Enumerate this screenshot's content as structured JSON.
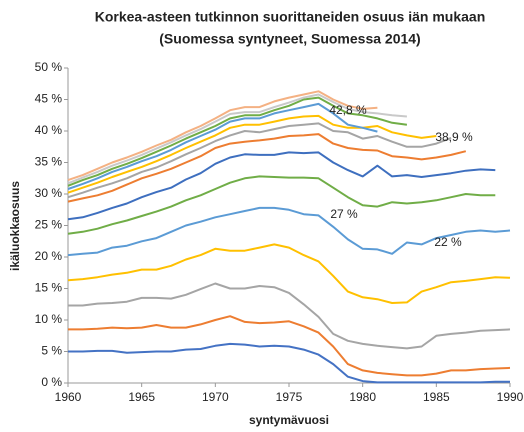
{
  "chart_data": {
    "type": "line",
    "title": "Korkea-asteen tutkinnon suorittaneiden osuus iän mukaan",
    "subtitle": "(Suomessa syntyneet, Suomessa 2014)",
    "xlabel": "syntymävuosi",
    "ylabel": "ikäluokkaosuus",
    "x": [
      1960,
      1961,
      1962,
      1963,
      1964,
      1965,
      1966,
      1967,
      1968,
      1969,
      1970,
      1971,
      1972,
      1973,
      1974,
      1975,
      1976,
      1977,
      1978,
      1979,
      1980,
      1981,
      1982,
      1983,
      1984,
      1985,
      1986,
      1987,
      1988,
      1989,
      1990
    ],
    "xlim": [
      1960,
      1990
    ],
    "xticks": [
      1960,
      1965,
      1970,
      1975,
      1980,
      1985,
      1990
    ],
    "ylim": [
      0,
      50
    ],
    "yticks": [
      {
        "value": 0,
        "label": "0 %"
      },
      {
        "value": 5,
        "label": "5 %"
      },
      {
        "value": 10,
        "label": "10 %"
      },
      {
        "value": 15,
        "label": "15 %"
      },
      {
        "value": 20,
        "label": "20 %"
      },
      {
        "value": 25,
        "label": "25 %"
      },
      {
        "value": 30,
        "label": "30 %"
      },
      {
        "value": 35,
        "label": "35 %"
      },
      {
        "value": 40,
        "label": "40 %"
      },
      {
        "value": 45,
        "label": "45 %"
      },
      {
        "value": 50,
        "label": "50 %"
      }
    ],
    "grid": false,
    "annotations": [
      "42,8 %",
      "38,9 %",
      "27 %",
      "22 %"
    ],
    "series": [
      {
        "color": "#4472c4",
        "values": [
          5,
          5,
          5.1,
          5.1,
          4.8,
          4.9,
          5,
          5,
          5.3,
          5.4,
          5.9,
          6.2,
          6.1,
          5.8,
          5.9,
          5.8,
          5.3,
          4.5,
          3,
          1,
          0.3,
          0.1,
          0.1,
          0.1,
          0.1,
          0.1,
          0.1,
          0.1,
          0.1,
          0.2,
          0.2
        ]
      },
      {
        "color": "#ed7d31",
        "values": [
          8.5,
          8.5,
          8.6,
          8.8,
          8.7,
          8.8,
          9.2,
          8.8,
          8.8,
          9.3,
          10,
          10.6,
          9.7,
          9.5,
          9.6,
          9.8,
          9,
          8,
          5.8,
          3,
          2,
          1.6,
          1.4,
          1.2,
          1.2,
          1.5,
          2,
          2,
          2.2,
          2.3,
          2.4
        ]
      },
      {
        "color": "#a5a5a5",
        "values": [
          12.3,
          12.3,
          12.6,
          12.7,
          12.9,
          13.5,
          13.5,
          13.4,
          14,
          14.9,
          15.8,
          15,
          15,
          15.4,
          15.2,
          14.3,
          12.5,
          10.5,
          7.8,
          6.7,
          6.2,
          5.9,
          5.7,
          5.5,
          5.8,
          7.5,
          7.8,
          8,
          8.3,
          8.4,
          8.5
        ]
      },
      {
        "color": "#ffc000",
        "values": [
          16.3,
          16.5,
          16.8,
          17.2,
          17.5,
          18,
          18,
          18.6,
          19.6,
          20.3,
          21.3,
          21,
          21,
          21.5,
          22,
          21.5,
          20.3,
          19.3,
          17,
          14.5,
          13.6,
          13.3,
          12.7,
          12.8,
          14.5,
          15.2,
          16,
          16.2,
          16.5,
          16.8,
          16.7
        ]
      },
      {
        "color": "#5b9bd5",
        "values": [
          20.3,
          20.5,
          20.7,
          21.5,
          21.8,
          22.5,
          23,
          24,
          25,
          25.6,
          26.3,
          26.8,
          27.3,
          27.8,
          27.8,
          27.5,
          26.8,
          26.6,
          24.8,
          22.8,
          21.3,
          21.2,
          20.5,
          22.3,
          22,
          23,
          23.5,
          24,
          24.2,
          24,
          24.2
        ]
      },
      {
        "color": "#70ad47",
        "values": [
          23.7,
          24,
          24.5,
          25.2,
          25.8,
          26.5,
          27.2,
          28,
          29,
          29.8,
          30.8,
          31.8,
          32.5,
          32.8,
          32.7,
          32.6,
          32.6,
          32.5,
          31,
          29.5,
          28.2,
          28,
          28.7,
          28.5,
          28.7,
          29,
          29.5,
          30,
          29.8,
          29.8,
          null
        ]
      },
      {
        "color": "#3e6fbf",
        "values": [
          26,
          26.3,
          27,
          27.8,
          28.5,
          29.5,
          30.3,
          31,
          32.3,
          33.3,
          34.8,
          35.8,
          36.3,
          36.2,
          36.2,
          36.6,
          36.5,
          36.6,
          35,
          33.8,
          32.8,
          34.5,
          32.8,
          33,
          32.7,
          33,
          33.3,
          33.7,
          33.9,
          33.8,
          null
        ]
      },
      {
        "color": "#ed7d31",
        "values": [
          28.8,
          29.3,
          29.8,
          30.5,
          31.5,
          32.5,
          33.2,
          34,
          35,
          36,
          37.3,
          38,
          38.3,
          38.5,
          38.8,
          39.2,
          39.3,
          39.5,
          38,
          37.3,
          37,
          36.9,
          36,
          35.8,
          35.5,
          35.8,
          36.2,
          36.8,
          null,
          null,
          null
        ]
      },
      {
        "color": "#a5a5a5",
        "values": [
          29.5,
          30.2,
          31,
          31.7,
          32.5,
          33.5,
          34.2,
          35.2,
          36.3,
          37.3,
          38.4,
          39.3,
          40,
          39.8,
          40.3,
          40.8,
          41,
          41.2,
          40,
          39.8,
          38.8,
          39.2,
          38.3,
          37.5,
          37.5,
          38,
          38.9,
          null,
          null,
          null,
          null
        ]
      },
      {
        "color": "#ffc000",
        "values": [
          30.2,
          31,
          31.8,
          32.7,
          33.5,
          34.3,
          35.2,
          36.2,
          37.3,
          38.3,
          39.3,
          40.5,
          41,
          41,
          41.5,
          42,
          42.3,
          42.4,
          41,
          40.5,
          40.5,
          40.8,
          39.8,
          39.3,
          38.9,
          39.2,
          null,
          null,
          null,
          null,
          null
        ]
      },
      {
        "color": "#5b9bd5",
        "values": [
          30.8,
          31.6,
          32.5,
          33.5,
          34.3,
          35.2,
          36,
          37,
          38.2,
          39.2,
          40.2,
          41.5,
          42,
          42,
          42.8,
          43.3,
          43.8,
          44.3,
          42.8,
          41,
          40.5,
          39.9,
          null,
          null,
          null,
          null,
          null,
          null,
          null,
          null,
          null
        ]
      },
      {
        "color": "#70ad47",
        "values": [
          31.3,
          32.2,
          33,
          34,
          34.8,
          35.7,
          36.7,
          37.7,
          38.8,
          39.8,
          40.8,
          42,
          42.5,
          42.5,
          43.3,
          44,
          45,
          45.3,
          44,
          42.8,
          42.5,
          42,
          41.3,
          41,
          null,
          null,
          null,
          null,
          null,
          null,
          null
        ]
      },
      {
        "color": "#c9c9c9",
        "values": [
          31.7,
          32.6,
          33.5,
          34.5,
          35.3,
          36.2,
          37.2,
          38.2,
          39.3,
          40.3,
          41.5,
          42.7,
          43,
          43,
          43.8,
          44.5,
          45.3,
          45.8,
          44.6,
          43.5,
          43,
          42.8,
          42.5,
          42.3,
          null,
          null,
          null,
          null,
          null,
          null,
          null
        ]
      },
      {
        "color": "#f4b183",
        "values": [
          32.2,
          33,
          34,
          35,
          35.8,
          36.7,
          37.7,
          38.6,
          39.8,
          40.8,
          42,
          43.3,
          43.8,
          43.8,
          44.7,
          45.3,
          45.8,
          46.3,
          45,
          44,
          43.5,
          43.7,
          null,
          null,
          null,
          null,
          null,
          null,
          null,
          null,
          null
        ]
      }
    ]
  }
}
